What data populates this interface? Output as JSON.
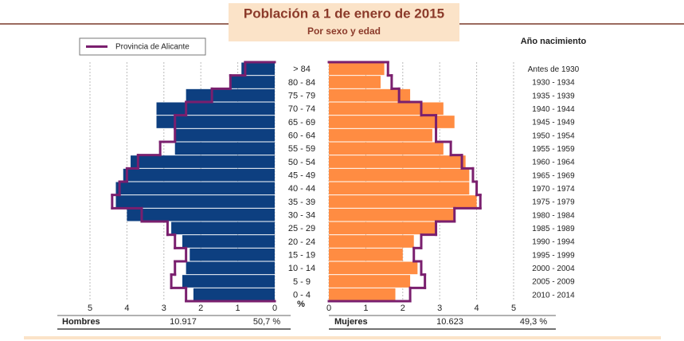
{
  "chart_data": {
    "type": "pyramid",
    "title": "Población a 1 de enero de 2015",
    "subtitle": "Por sexo y edad",
    "categories": [
      "> 84",
      "80 - 84",
      "75 - 79",
      "70 - 74",
      "65 - 69",
      "60 - 64",
      "55 - 59",
      "50 - 54",
      "45 - 49",
      "40 - 44",
      "35 - 39",
      "30 - 34",
      "25 - 29",
      "20 - 24",
      "15 - 19",
      "10 - 14",
      "5 - 9",
      "0 - 4"
    ],
    "year_header": "Año nacimiento",
    "year_labels": [
      "Antes de 1930",
      "1930 - 1934",
      "1935 - 1939",
      "1940 - 1944",
      "1945 - 1949",
      "1950 - 1954",
      "1955 - 1959",
      "1960 - 1964",
      "1965 - 1969",
      "1970 - 1974",
      "1975 - 1979",
      "1980 - 1984",
      "1985 - 1989",
      "1990 - 1994",
      "1995 - 1999",
      "2000 - 2004",
      "2005 - 2009",
      "2010 - 2014"
    ],
    "series": [
      {
        "name": "Hombres",
        "color": "#0d3f80",
        "values": [
          0.9,
          1.2,
          2.4,
          3.2,
          3.2,
          2.7,
          2.7,
          3.9,
          4.1,
          4.3,
          4.3,
          4.0,
          2.8,
          2.5,
          2.3,
          2.4,
          2.5,
          2.2
        ]
      },
      {
        "name": "Mujeres",
        "color": "#ff8c42",
        "values": [
          1.5,
          1.4,
          2.2,
          3.1,
          3.4,
          2.8,
          3.1,
          3.7,
          3.8,
          3.8,
          4.0,
          3.4,
          2.9,
          2.3,
          2.0,
          2.4,
          2.2,
          1.8
        ]
      }
    ],
    "reference": {
      "name": "Provincia de Alicante",
      "color": "#7a1f6e",
      "values_left": [
        0.8,
        1.2,
        1.7,
        2.4,
        2.7,
        2.7,
        3.1,
        3.7,
        4.0,
        4.2,
        4.4,
        3.6,
        2.9,
        2.7,
        2.4,
        2.7,
        2.8,
        2.4
      ],
      "values_right": [
        1.6,
        1.7,
        1.9,
        2.5,
        2.9,
        2.9,
        3.3,
        3.6,
        3.9,
        4.0,
        4.1,
        3.4,
        2.9,
        2.5,
        2.3,
        2.5,
        2.6,
        2.2
      ]
    },
    "xlim": [
      0,
      5
    ],
    "xticks": [
      0,
      1,
      2,
      3,
      4,
      5
    ],
    "x_label": "%",
    "grid": true,
    "totals": [
      {
        "label": "Hombres",
        "count": "10.917",
        "percent": "50,7 %"
      },
      {
        "label": "Mujeres",
        "count": "10.623",
        "percent": "49,3 %"
      }
    ]
  }
}
